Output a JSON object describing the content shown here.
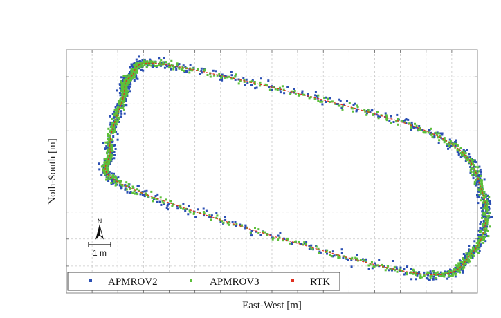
{
  "chart_data": {
    "type": "scatter",
    "title": "",
    "xlabel": "East-West [m]",
    "ylabel": "Noth-South [m]",
    "xlim": [
      0,
      16
    ],
    "ylim": [
      0,
      9
    ],
    "grid": true,
    "tick_labels": false,
    "legend_position": "bottom-left",
    "scale_bar": {
      "label": "1 m",
      "length": 1
    },
    "north_arrow": {
      "label": "N"
    },
    "series": [
      {
        "name": "APMROV2",
        "marker": "square",
        "color": "#2b4fb3"
      },
      {
        "name": "APMROV3",
        "marker": "square",
        "color": "#5cbf3a"
      },
      {
        "name": "RTK",
        "marker": "square",
        "color": "#e03020"
      }
    ],
    "track_vertices": [
      [
        2.2,
        7.2
      ],
      [
        2.5,
        8.0
      ],
      [
        4.2,
        8.4
      ],
      [
        14.0,
        6.0
      ],
      [
        16.2,
        3.7
      ],
      [
        15.8,
        1.5
      ],
      [
        13.2,
        0.8
      ],
      [
        2.7,
        3.8
      ],
      [
        1.7,
        5.3
      ]
    ],
    "scatter_spread": {
      "APMROV2": 0.2,
      "APMROV3": 0.14
    }
  }
}
